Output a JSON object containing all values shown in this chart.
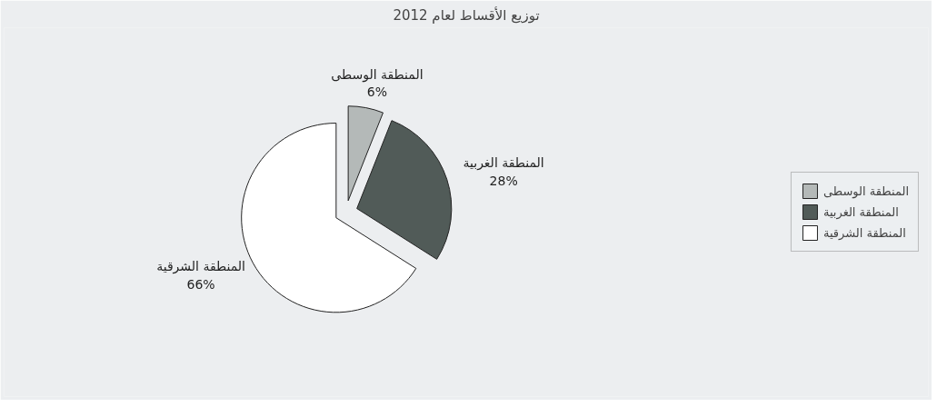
{
  "chart_data": {
    "type": "pie",
    "title": "توزيع الأقساط لعام 2012",
    "categories": [
      "المنطقة الوسطى",
      "المنطقة الغربية",
      "المنطقة الشرقية"
    ],
    "values": [
      6,
      28,
      66
    ],
    "value_labels": [
      "6%",
      "28%",
      "66%"
    ],
    "colors": [
      "#b4b9b8",
      "#515b58",
      "#ffffff"
    ],
    "legend": "right"
  }
}
